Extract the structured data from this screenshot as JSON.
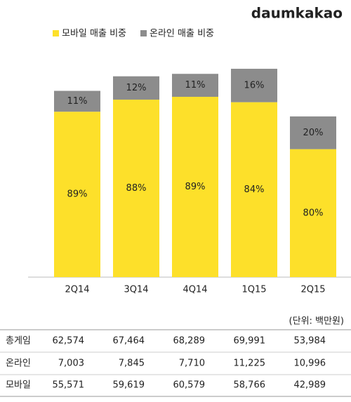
{
  "chart_data": {
    "type": "stacked_bar",
    "brand": "daumkakao",
    "categories": [
      "2Q14",
      "3Q14",
      "4Q14",
      "1Q15",
      "2Q15"
    ],
    "series": [
      {
        "name": "모바일 매출 비중",
        "color": "#fde02a",
        "values": [
          55571,
          59619,
          60579,
          58766,
          42989
        ],
        "share_labels": [
          "89%",
          "88%",
          "89%",
          "84%",
          "80%"
        ]
      },
      {
        "name": "온라인 매출 비중",
        "color": "#8c8c8c",
        "values": [
          7003,
          7845,
          7710,
          11225,
          10996
        ],
        "share_labels": [
          "11%",
          "12%",
          "11%",
          "16%",
          "20%"
        ]
      }
    ],
    "ylim": [
      0,
      70000
    ]
  },
  "table": {
    "unit": "(단위: 백만원)",
    "rows": [
      {
        "label": "총게임",
        "values": [
          "62,574",
          "67,464",
          "68,289",
          "69,991",
          "53,984"
        ]
      },
      {
        "label": "온라인",
        "values": [
          "7,003",
          "7,845",
          "7,710",
          "11,225",
          "10,996"
        ]
      },
      {
        "label": "모바일",
        "values": [
          "55,571",
          "59,619",
          "60,579",
          "58,766",
          "42,989"
        ]
      }
    ]
  }
}
